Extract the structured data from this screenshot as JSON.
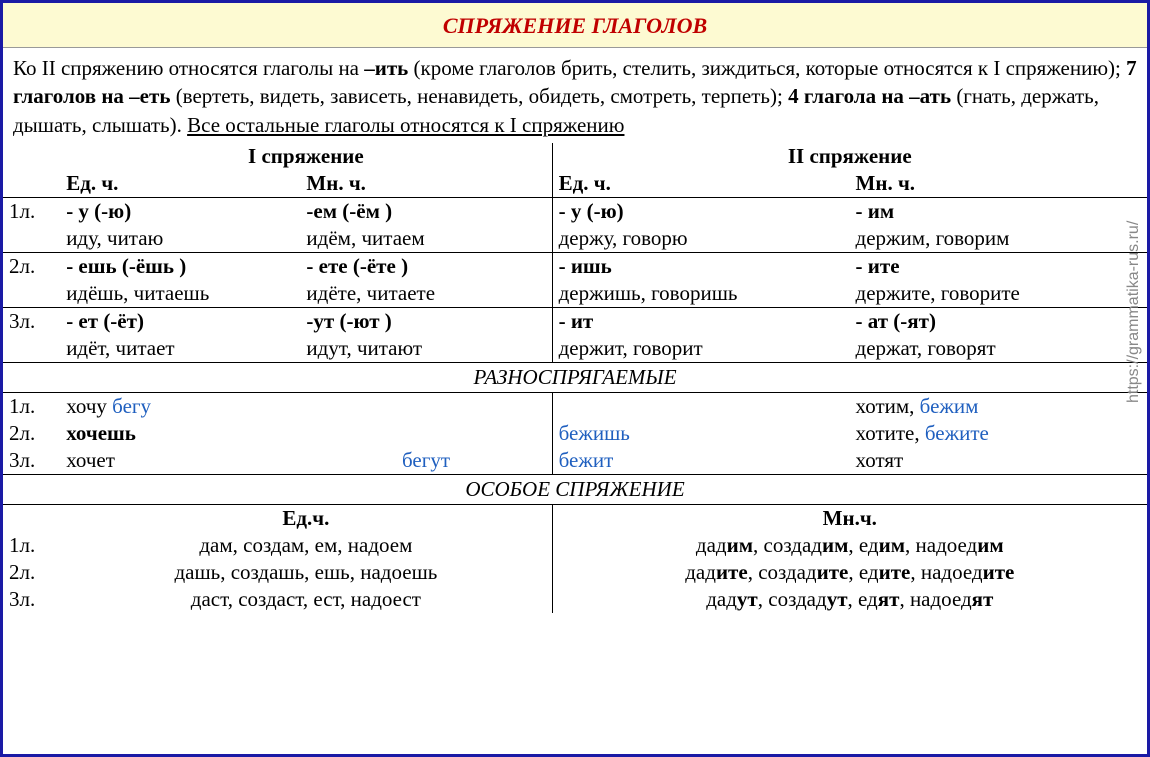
{
  "watermark": "https://grammatika-rus.ru/",
  "title": "СПРЯЖЕНИЕ ГЛАГОЛОВ",
  "intro": {
    "p1a": "Ко II спряжению относятся глаголы на ",
    "p1b": "–ить",
    "p1c": " (кроме глаголов брить, стелить, зиждиться, которые относятся к I спряжению); ",
    "p1d": "7 глаголов на –еть",
    "p1e": " (вертеть, видеть, зависеть, ненавидеть, обидеть, смотреть, терпеть); ",
    "p1f": "4 глагола на –ать",
    "p1g": " (гнать, держать, дышать, слышать). ",
    "p1h": "Все остальные глаголы относятся к I спряжению"
  },
  "hdr": {
    "c1": "I спряжение",
    "c2": "II спряжение",
    "sg": "Ед. ч.",
    "pl": "Мн. ч.",
    "sg2": "Ед.ч.",
    "pl2": "Мн.ч."
  },
  "person": {
    "p1": "1л.",
    "p2": "2л.",
    "p3": "3л."
  },
  "r1": {
    "e1a": "- у (-ю)",
    "e1b": "иду, читаю",
    "e2a": "-ем (-ём )",
    "e2b": "идём, читаем",
    "e3a": "- у (-ю)",
    "e3b": "держу, говорю",
    "e4a": "- им",
    "e4b": "держим, говорим"
  },
  "r2": {
    "e1a": "- ешь (-ёшь )",
    "e1b": " идёшь, читаешь",
    "e2a": "- ете (-ёте )",
    "e2b": "идёте, читаете",
    "e3a": "- ишь",
    "e3b": "держишь, говоришь",
    "e4a": "- ите",
    "e4b": "держите, говорите"
  },
  "r3": {
    "e1a": "- ет (-ёт)",
    "e1b": "идёт, читает",
    "e2a": "-ут (-ют )",
    "e2b": "идут, читают",
    "e3a": "- ит",
    "e3b": "держит, говорит",
    "e4a": "- ат (-ят)",
    "e4b": "держат, говорят"
  },
  "sec1": "РАЗНОСПРЯГАЕМЫЕ",
  "mix": {
    "r1a": "хочу ",
    "r1a2": "бегу",
    "r1d": "хотим, ",
    "r1d2": "бежим",
    "r2a": "хочешь",
    "r2c": "бежишь",
    "r2d": "хотите, ",
    "r2d2": "бежите",
    "r3a": "хочет",
    "r3b": "бегут",
    "r3c": "бежит",
    "r3d": "хотят"
  },
  "sec2": "ОСОБОЕ СПРЯЖЕНИЕ",
  "sp": {
    "r1a": "дам, создам, ем, надоем",
    "r1b_pre": "дад",
    "r1b_1": "им",
    "r1b_2": ", создад",
    "r1b_3": "им",
    "r1b_4": ", ед",
    "r1b_5": "им",
    "r1b_6": ", надоед",
    "r1b_7": "им",
    "r2a": "дашь, создашь, ешь, надоешь",
    "r2b_pre": "дад",
    "r2b_1": "ите",
    "r2b_2": ", создад",
    "r2b_3": "ите",
    "r2b_4": ", ед",
    "r2b_5": "ите",
    "r2b_6": ", надоед",
    "r2b_7": "ите",
    "r3a": "даст, создаст, ест, надоест",
    "r3b_pre": "дад",
    "r3b_1": "ут",
    "r3b_2": ", создад",
    "r3b_3": "ут",
    "r3b_4": ", ед",
    "r3b_5": "ят",
    "r3b_6": ", надоед",
    "r3b_7": "ят"
  }
}
